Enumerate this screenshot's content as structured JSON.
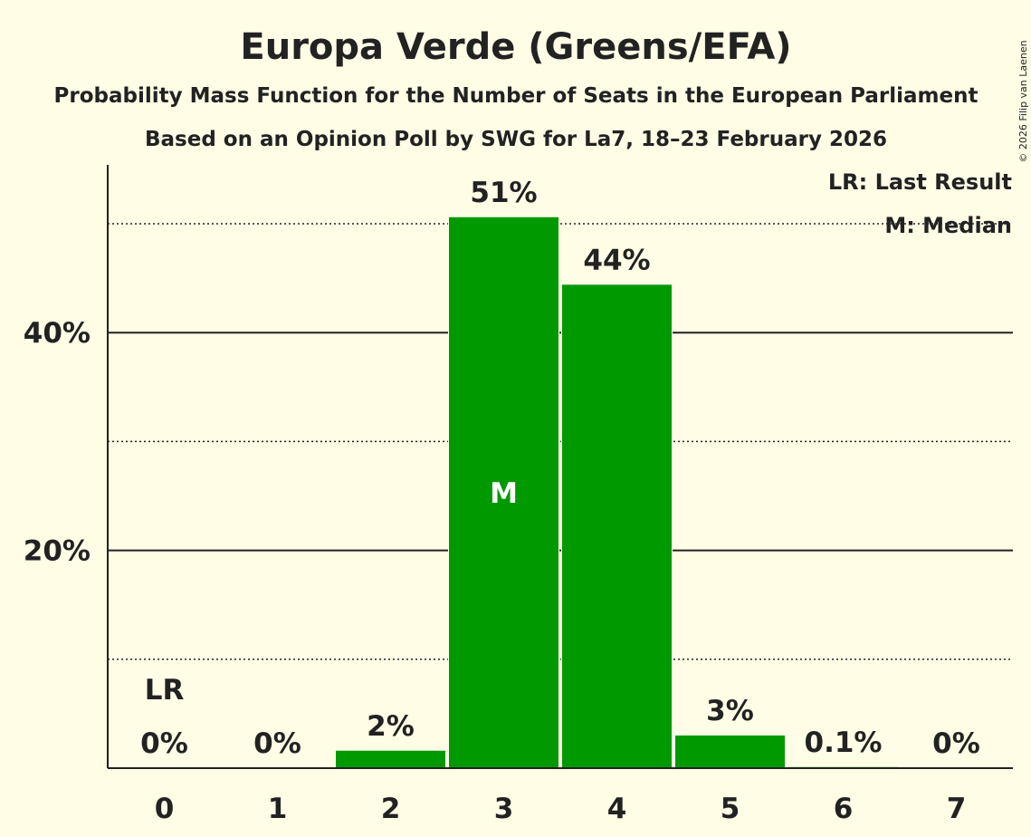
{
  "chart_data": {
    "type": "bar",
    "title": "Europa Verde (Greens/EFA)",
    "subtitle": "Probability Mass Function for the Number of Seats in the European Parliament",
    "subtitle2": "Based on an Opinion Poll by SWG for La7, 18–23 February 2026",
    "copyright": "© 2026 Filip van Laenen",
    "categories": [
      "0",
      "1",
      "2",
      "3",
      "4",
      "5",
      "6",
      "7"
    ],
    "values": [
      0,
      0,
      1.6,
      50.6,
      44.4,
      3.0,
      0.1,
      0
    ],
    "labels": [
      "0%",
      "0%",
      "2%",
      "51%",
      "44%",
      "3%",
      "0.1%",
      "0%"
    ],
    "ylim": [
      0,
      55
    ],
    "yticks": [
      20,
      40
    ],
    "ytick_labels": [
      "20%",
      "40%"
    ],
    "dotted_gridlines": [
      10,
      30,
      50
    ],
    "last_result_index": 0,
    "last_result_label": "LR",
    "median_index": 3,
    "median_label": "M",
    "legend": [
      "LR: Last Result",
      "M: Median"
    ],
    "bar_color": "#009900",
    "xlabel": "",
    "ylabel": ""
  }
}
